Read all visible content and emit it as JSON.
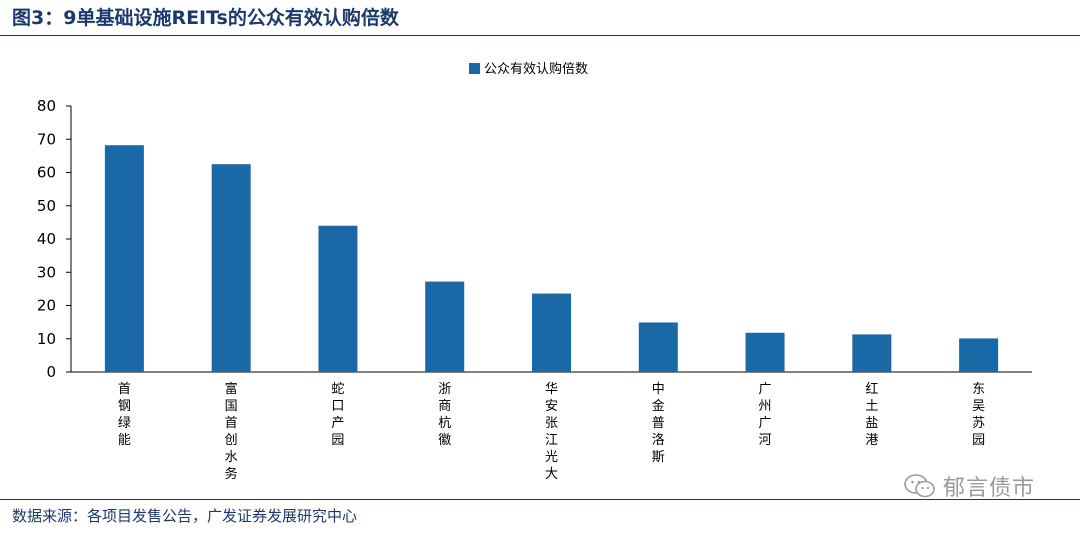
{
  "header": {
    "figure_title": "图3：9单基础设施REITs的公众有效认购倍数"
  },
  "footer": {
    "source": "数据来源：各项目发售公告，广发证券发展研究中心",
    "watermark": "郁言债市",
    "watermark_icon": "wechat-icon"
  },
  "colors": {
    "bar": "#1a68a6",
    "title": "#1b3a6b"
  },
  "chart_data": {
    "type": "bar",
    "categories": [
      "首钢绿能",
      "富国首创水务",
      "蛇口产园",
      "浙商杭徽",
      "华安张江光大",
      "中金普洛斯",
      "广州广河",
      "红土盐港",
      "东吴苏园"
    ],
    "series": [
      {
        "name": "公众有效认购倍数",
        "values": [
          68.2,
          62.5,
          44,
          27.2,
          23.6,
          14.9,
          11.8,
          11.3,
          10.1
        ]
      }
    ],
    "ylim": [
      0,
      80
    ],
    "yticks": [
      0,
      10,
      20,
      30,
      40,
      50,
      60,
      70,
      80
    ],
    "legend_position": "top-center",
    "grid": false
  }
}
